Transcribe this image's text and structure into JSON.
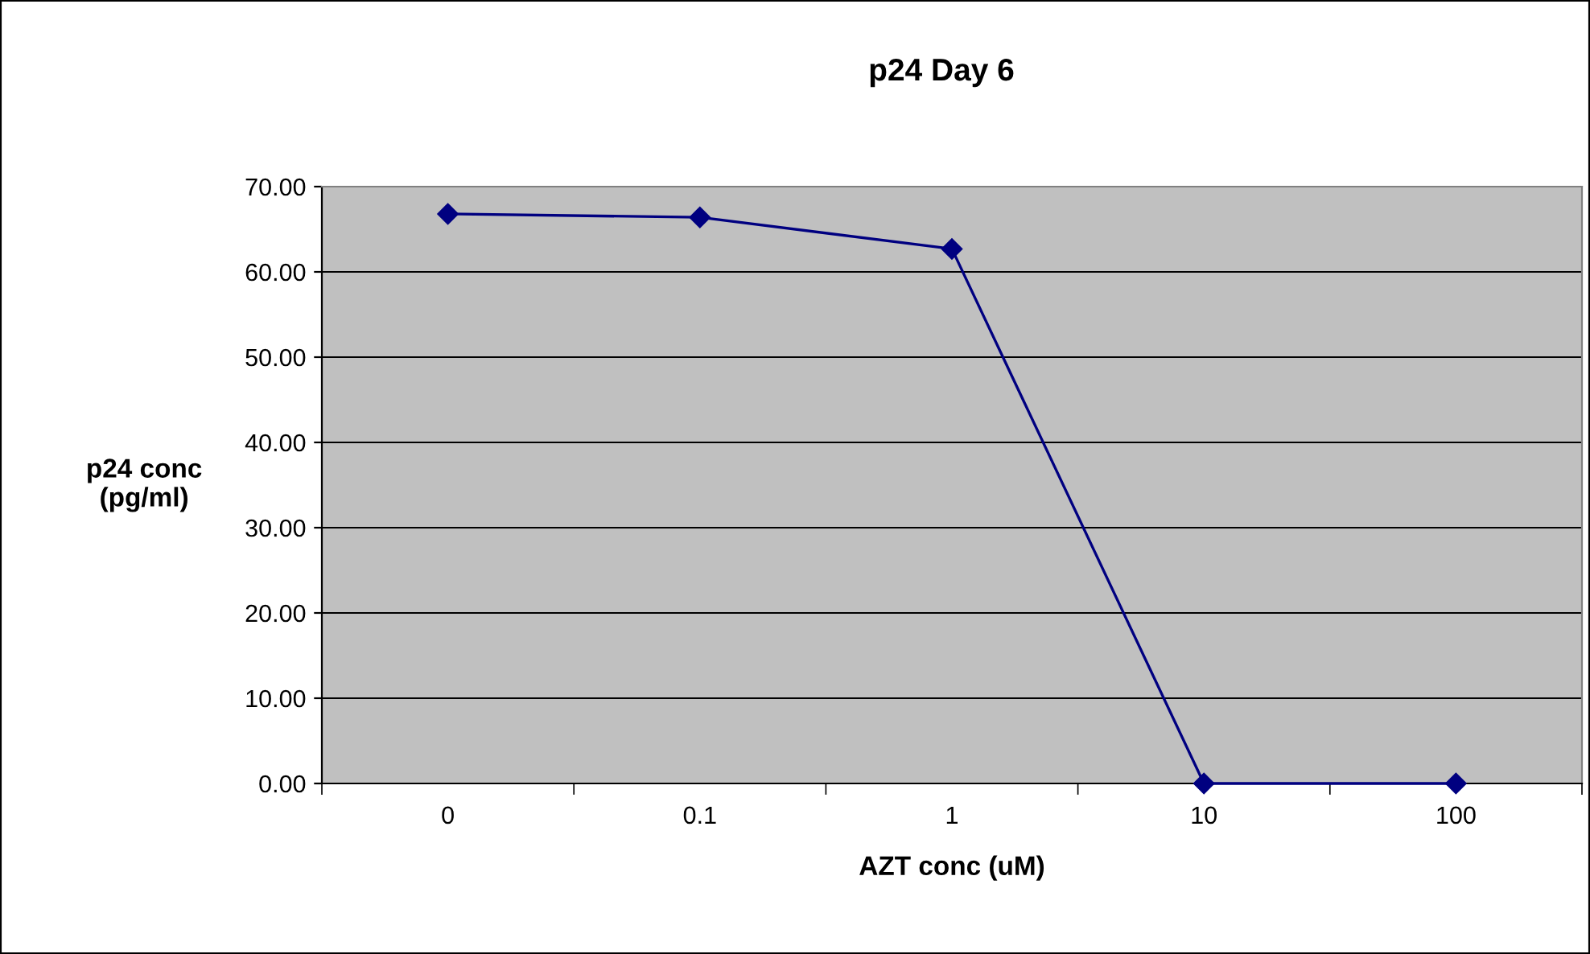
{
  "chart_data": {
    "type": "line",
    "title": "p24 Day 6",
    "xlabel": "AZT conc (uM)",
    "ylabel": "p24 conc\n(pg/ml)",
    "categories": [
      "0",
      "0.1",
      "1",
      "10",
      "100"
    ],
    "series": [
      {
        "color": "#000080",
        "values": [
          66.8,
          66.4,
          62.7,
          0.0,
          0.0
        ]
      }
    ],
    "ylim": [
      0,
      70
    ],
    "yticks": [
      {
        "value": 0,
        "label": "0.00"
      },
      {
        "value": 10,
        "label": "10.00"
      },
      {
        "value": 20,
        "label": "20.00"
      },
      {
        "value": 30,
        "label": "30.00"
      },
      {
        "value": 40,
        "label": "40.00"
      },
      {
        "value": 50,
        "label": "50.00"
      },
      {
        "value": 60,
        "label": "60.00"
      },
      {
        "value": 70,
        "label": "70.00"
      }
    ],
    "grid": "y",
    "legend": false,
    "marker": "diamond",
    "line_style": "solid"
  }
}
